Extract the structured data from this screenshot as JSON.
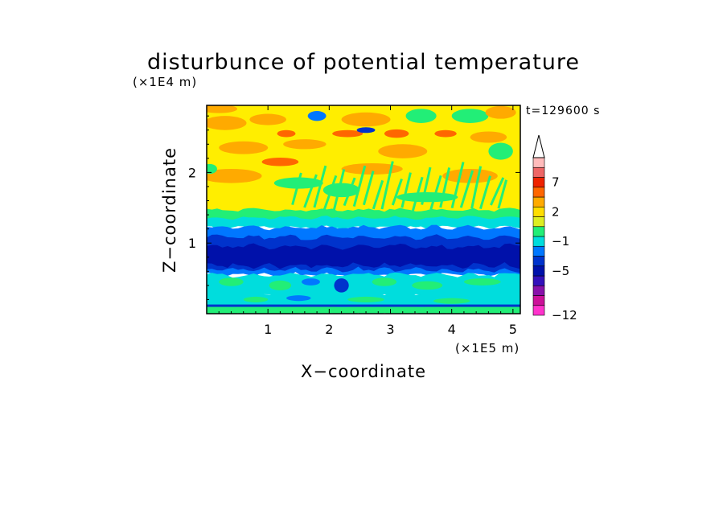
{
  "chart_data": {
    "type": "heatmap",
    "title": "disturbunce of potential temperature",
    "xlabel": "X−coordinate",
    "ylabel": "Z−coordinate",
    "x_scale_label": "(×1E5 m)",
    "y_scale_label": "(×1E4 m)",
    "time_label": "t=129600 s",
    "xlim": [
      0,
      5.12
    ],
    "ylim": [
      0,
      2.95
    ],
    "x_ticks": [
      1,
      2,
      3,
      4,
      5
    ],
    "y_ticks": [
      1,
      2
    ],
    "x_tick_labels": [
      "1",
      "2",
      "3",
      "4",
      "5"
    ],
    "y_tick_labels": [
      "1",
      "2"
    ],
    "grid": false,
    "colorbar": {
      "levels": [
        -12,
        -9,
        -7,
        -5,
        -4,
        -3,
        -2,
        -1,
        0,
        1,
        2,
        3,
        5,
        7,
        9,
        12
      ],
      "tick_labels": [
        "7",
        "2",
        "−1",
        "−5",
        "−12"
      ],
      "colors": [
        "#ff33cc",
        "#cc1199",
        "#8811aa",
        "#3311bb",
        "#0011aa",
        "#0033cc",
        "#0077ff",
        "#00dddd",
        "#22ee77",
        "#ddee22",
        "#ffdd00",
        "#ffaa00",
        "#ff6600",
        "#ee2200",
        "#ee6666",
        "#ffbbbb"
      ],
      "extend_arrow": "max"
    },
    "z_bands": [
      {
        "z_range": [
          0,
          0.08
        ],
        "dominant": "0 to 1",
        "note": "green surface layer"
      },
      {
        "z_range": [
          0.08,
          0.25
        ],
        "dominant": "-2 to -1",
        "note": "cyan"
      },
      {
        "z_range": [
          0.25,
          0.55
        ],
        "dominant": "-1 to 0 / -2 to -1",
        "note": "cyan with green blobs"
      },
      {
        "z_range": [
          0.55,
          0.85
        ],
        "dominant": "-4 to -3",
        "note": "dark blue"
      },
      {
        "z_range": [
          0.85,
          1.3
        ],
        "dominant": "-3 to -2",
        "note": "blue"
      },
      {
        "z_range": [
          1.3,
          1.5
        ],
        "dominant": "-1 to 0",
        "note": "cyan/green"
      },
      {
        "z_range": [
          1.5,
          2.95
        ],
        "dominant": "1 to 3",
        "note": "yellow/orange with green streaks"
      }
    ]
  }
}
